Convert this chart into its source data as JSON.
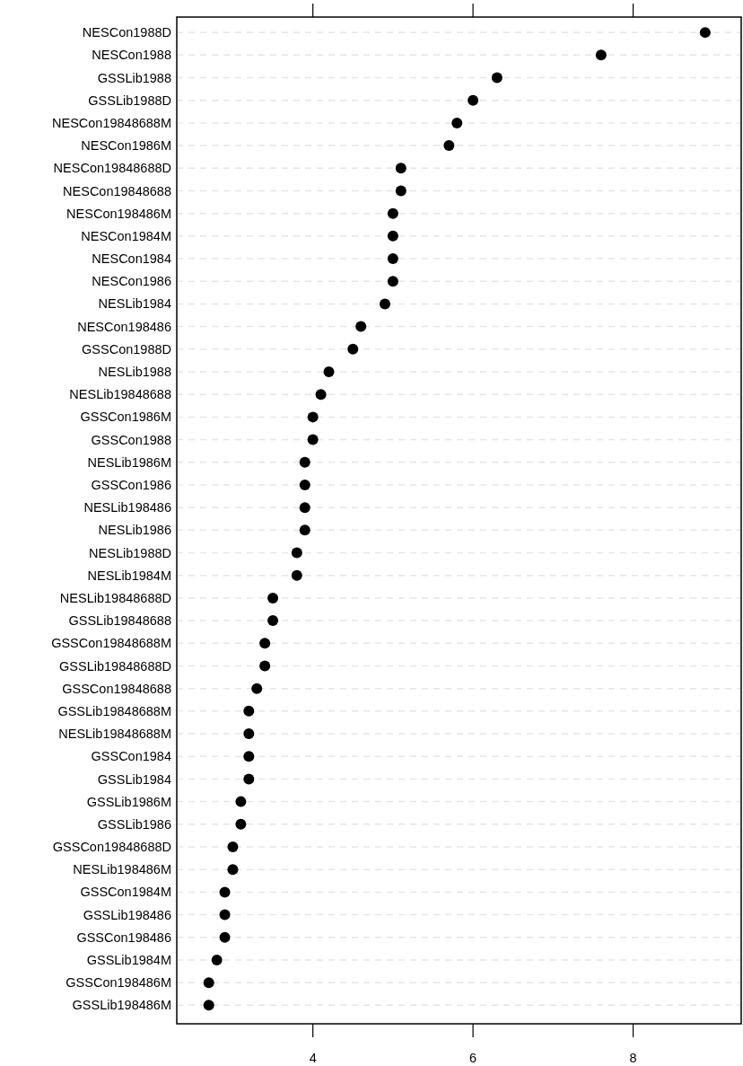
{
  "chart_data": {
    "type": "scatter",
    "orientation": "horizontal",
    "marker": "circle",
    "grid": "y",
    "categories": [
      "NESCon1988D",
      "NESCon1988",
      "GSSLib1988",
      "GSSLib1988D",
      "NESCon19848688M",
      "NESCon1986M",
      "NESCon19848688D",
      "NESCon19848688",
      "NESCon198486M",
      "NESCon1984M",
      "NESCon1984",
      "NESCon1986",
      "NESLib1984",
      "NESCon198486",
      "GSSCon1988D",
      "NESLib1988",
      "NESLib19848688",
      "GSSCon1986M",
      "GSSCon1988",
      "NESLib1986M",
      "GSSCon1986",
      "NESLib198486",
      "NESLib1986",
      "NESLib1988D",
      "NESLib1984M",
      "NESLib19848688D",
      "GSSLib19848688",
      "GSSCon19848688M",
      "GSSLib19848688D",
      "GSSCon19848688",
      "GSSLib19848688M",
      "NESLib19848688M",
      "GSSCon1984",
      "GSSLib1984",
      "GSSLib1986M",
      "GSSLib1986",
      "GSSCon19848688D",
      "NESLib198486M",
      "GSSCon1984M",
      "GSSLib198486",
      "GSSCon198486",
      "GSSLib1984M",
      "GSSCon198486M",
      "GSSLib198486M"
    ],
    "series": [
      {
        "color": "#000000",
        "values": [
          8.9,
          7.6,
          6.3,
          6.0,
          5.8,
          5.7,
          5.1,
          5.1,
          5.0,
          5.0,
          5.0,
          5.0,
          4.9,
          4.6,
          4.5,
          4.2,
          4.1,
          4.0,
          4.0,
          3.9,
          3.9,
          3.9,
          3.9,
          3.8,
          3.8,
          3.5,
          3.5,
          3.4,
          3.4,
          3.3,
          3.2,
          3.2,
          3.2,
          3.2,
          3.1,
          3.1,
          3.0,
          3.0,
          2.9,
          2.9,
          2.9,
          2.8,
          2.7,
          2.7
        ]
      }
    ],
    "xlim": [
      2.3,
      9.35
    ],
    "xticks": [
      4,
      6,
      8
    ]
  }
}
